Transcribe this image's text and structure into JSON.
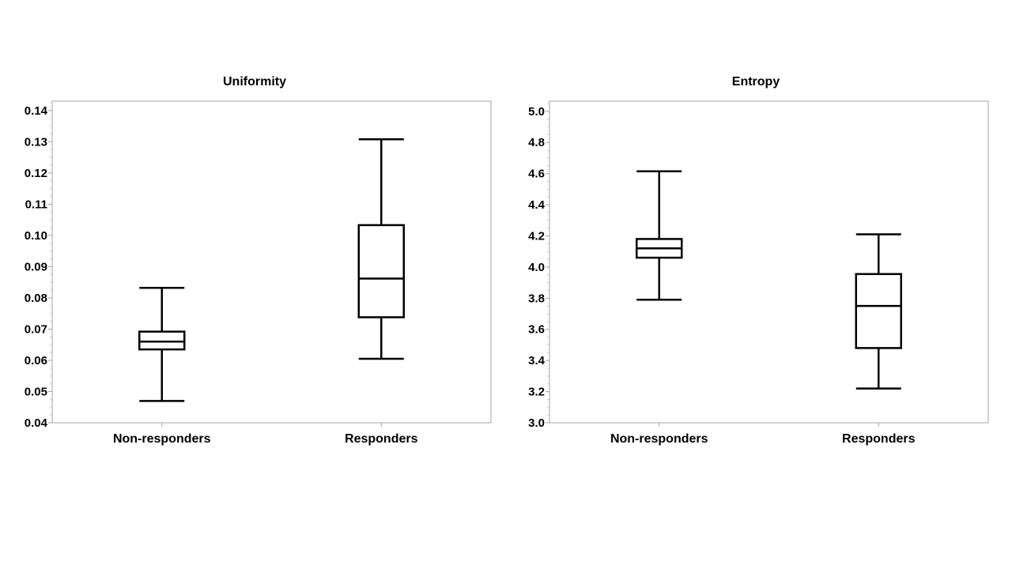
{
  "chart_data": [
    {
      "type": "boxplot",
      "title": "Uniformity",
      "categories": [
        "Non-responders",
        "Responders"
      ],
      "boxes": [
        {
          "category": "Non-responders",
          "min": 0.047,
          "q1": 0.0635,
          "median": 0.066,
          "q3": 0.0692,
          "max": 0.0832
        },
        {
          "category": "Responders",
          "min": 0.0605,
          "q1": 0.0738,
          "median": 0.0862,
          "q3": 0.1033,
          "max": 0.1308
        }
      ],
      "ylim": [
        0.04,
        0.143
      ],
      "yticks": [
        "0.04",
        "0.05",
        "0.06",
        "0.07",
        "0.08",
        "0.09",
        "0.10",
        "0.11",
        "0.12",
        "0.13",
        "0.14"
      ],
      "grid": false
    },
    {
      "type": "boxplot",
      "title": "Entropy",
      "categories": [
        "Non-responders",
        "Responders"
      ],
      "boxes": [
        {
          "category": "Non-responders",
          "min": 3.79,
          "q1": 4.06,
          "median": 4.12,
          "q3": 4.18,
          "max": 4.615
        },
        {
          "category": "Responders",
          "min": 3.22,
          "q1": 3.48,
          "median": 3.75,
          "q3": 3.955,
          "max": 4.21
        }
      ],
      "ylim": [
        3.0,
        5.065
      ],
      "yticks": [
        "3.0",
        "3.2",
        "3.4",
        "3.6",
        "3.8",
        "4.0",
        "4.2",
        "4.4",
        "4.6",
        "4.8",
        "5.0"
      ],
      "grid": false
    }
  ]
}
